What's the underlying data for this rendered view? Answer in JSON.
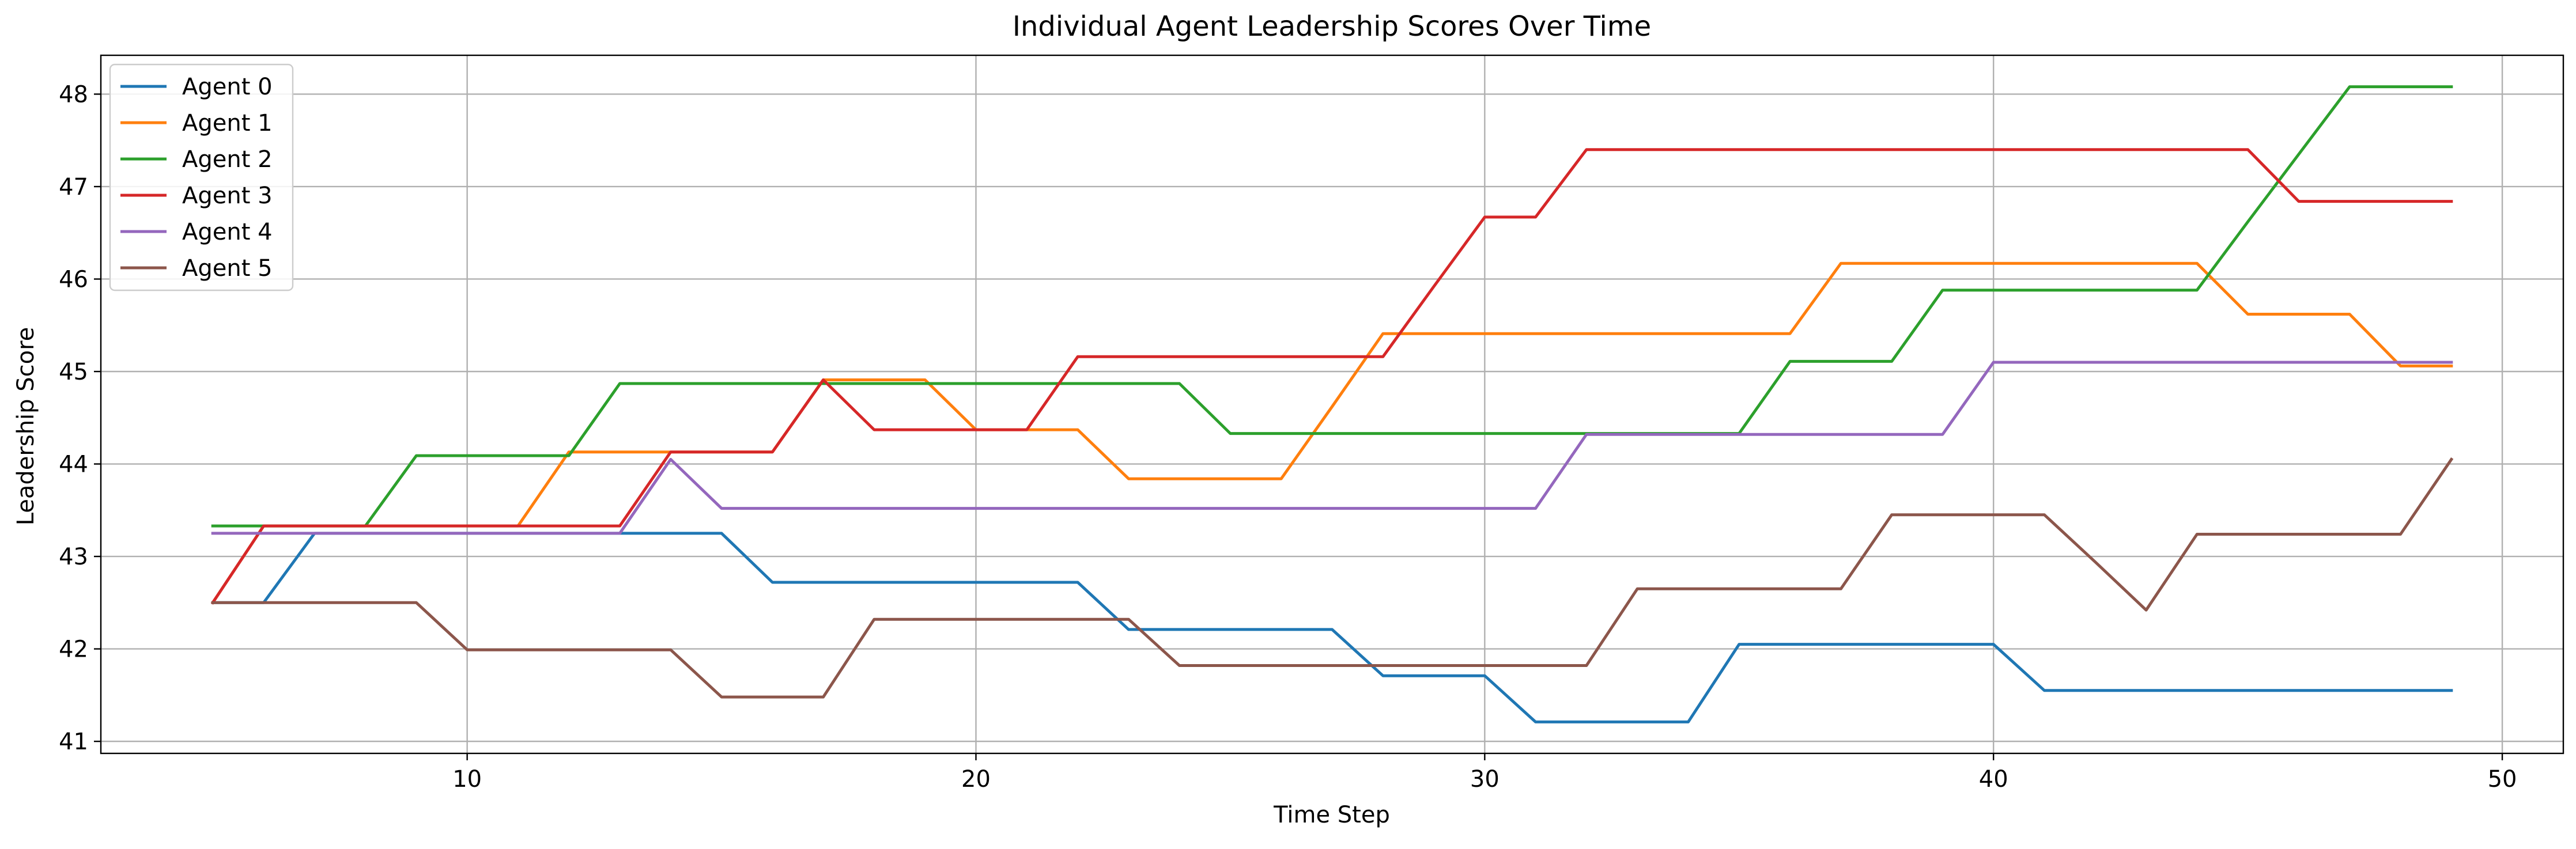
{
  "chart_data": {
    "type": "line",
    "title": "Individual Agent Leadership Scores Over Time",
    "xlabel": "Time Step",
    "ylabel": "Leadership Score",
    "xlim": [
      2.8,
      51.2
    ],
    "ylim": [
      40.87,
      48.42
    ],
    "xticks": [
      10,
      20,
      30,
      40,
      50
    ],
    "yticks": [
      41,
      42,
      43,
      44,
      45,
      46,
      47,
      48
    ],
    "grid": true,
    "legend_position": "upper-left",
    "x": [
      5,
      6,
      7,
      8,
      9,
      10,
      11,
      12,
      13,
      14,
      15,
      16,
      17,
      18,
      19,
      20,
      21,
      22,
      23,
      24,
      25,
      26,
      27,
      28,
      29,
      30,
      31,
      32,
      33,
      34,
      35,
      36,
      37,
      38,
      39,
      40,
      41,
      42,
      43,
      44,
      45,
      46,
      47,
      48,
      49
    ],
    "series": [
      {
        "name": "Agent 0",
        "color": "#1f77b4",
        "values": [
          42.5,
          42.5,
          43.25,
          43.25,
          43.25,
          43.25,
          43.25,
          43.25,
          43.25,
          43.25,
          43.25,
          42.72,
          42.72,
          42.72,
          42.72,
          42.72,
          42.72,
          42.72,
          42.21,
          42.21,
          42.21,
          42.21,
          42.21,
          41.71,
          41.71,
          41.71,
          41.21,
          41.21,
          41.21,
          41.21,
          42.05,
          42.05,
          42.05,
          42.05,
          42.05,
          42.05,
          41.55,
          41.55,
          41.55,
          41.55,
          41.55,
          41.55,
          41.55,
          41.55,
          41.55
        ]
      },
      {
        "name": "Agent 1",
        "color": "#ff7f0e",
        "values": [
          42.5,
          43.33,
          43.33,
          43.33,
          43.33,
          43.33,
          43.33,
          44.13,
          44.13,
          44.13,
          44.13,
          44.13,
          44.91,
          44.91,
          44.91,
          44.37,
          44.37,
          44.37,
          43.84,
          43.84,
          43.84,
          43.84,
          44.62,
          45.41,
          45.41,
          45.41,
          45.41,
          45.41,
          45.41,
          45.41,
          45.41,
          45.41,
          46.17,
          46.17,
          46.17,
          46.17,
          46.17,
          46.17,
          46.17,
          46.17,
          45.62,
          45.62,
          45.62,
          45.06,
          45.06
        ]
      },
      {
        "name": "Agent 2",
        "color": "#2ca02c",
        "values": [
          43.33,
          43.33,
          43.33,
          43.33,
          44.09,
          44.09,
          44.09,
          44.09,
          44.87,
          44.87,
          44.87,
          44.87,
          44.87,
          44.87,
          44.87,
          44.87,
          44.87,
          44.87,
          44.87,
          44.87,
          44.33,
          44.33,
          44.33,
          44.33,
          44.33,
          44.33,
          44.33,
          44.33,
          44.33,
          44.33,
          44.33,
          45.11,
          45.11,
          45.11,
          45.88,
          45.88,
          45.88,
          45.88,
          45.88,
          45.88,
          46.62,
          47.35,
          48.08,
          48.08,
          48.08
        ]
      },
      {
        "name": "Agent 3",
        "color": "#d62728",
        "values": [
          42.5,
          43.33,
          43.33,
          43.33,
          43.33,
          43.33,
          43.33,
          43.33,
          43.33,
          44.13,
          44.13,
          44.13,
          44.91,
          44.37,
          44.37,
          44.37,
          44.37,
          45.16,
          45.16,
          45.16,
          45.16,
          45.16,
          45.16,
          45.16,
          45.92,
          46.67,
          46.67,
          47.4,
          47.4,
          47.4,
          47.4,
          47.4,
          47.4,
          47.4,
          47.4,
          47.4,
          47.4,
          47.4,
          47.4,
          47.4,
          47.4,
          46.84,
          46.84,
          46.84,
          46.84
        ]
      },
      {
        "name": "Agent 4",
        "color": "#9467bd",
        "values": [
          43.25,
          43.25,
          43.25,
          43.25,
          43.25,
          43.25,
          43.25,
          43.25,
          43.25,
          44.05,
          43.52,
          43.52,
          43.52,
          43.52,
          43.52,
          43.52,
          43.52,
          43.52,
          43.52,
          43.52,
          43.52,
          43.52,
          43.52,
          43.52,
          43.52,
          43.52,
          43.52,
          44.32,
          44.32,
          44.32,
          44.32,
          44.32,
          44.32,
          44.32,
          44.32,
          45.1,
          45.1,
          45.1,
          45.1,
          45.1,
          45.1,
          45.1,
          45.1,
          45.1,
          45.1
        ]
      },
      {
        "name": "Agent 5",
        "color": "#8c564b",
        "values": [
          42.5,
          42.5,
          42.5,
          42.5,
          42.5,
          41.99,
          41.99,
          41.99,
          41.99,
          41.99,
          41.48,
          41.48,
          41.48,
          42.32,
          42.32,
          42.32,
          42.32,
          42.32,
          42.32,
          41.82,
          41.82,
          41.82,
          41.82,
          41.82,
          41.82,
          41.82,
          41.82,
          41.82,
          42.65,
          42.65,
          42.65,
          42.65,
          42.65,
          43.45,
          43.45,
          43.45,
          43.45,
          42.94,
          42.42,
          43.24,
          43.24,
          43.24,
          43.24,
          43.24,
          44.05
        ]
      }
    ]
  }
}
